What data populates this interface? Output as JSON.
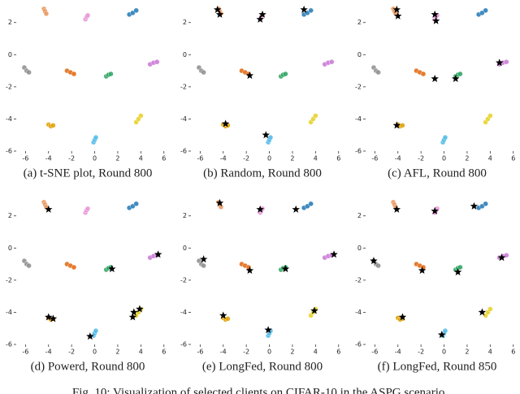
{
  "chart_data": [
    {
      "type": "scatter",
      "caption": "(a) t-SNE plot, Round 800",
      "xlim": [
        -6.8,
        6.3
      ],
      "ylim": [
        -6,
        3.2
      ],
      "xticks": [
        -6,
        -4,
        -2,
        0,
        2,
        4,
        6
      ],
      "yticks": [
        -6,
        -4,
        -2,
        0,
        2
      ],
      "series": [
        {
          "color": "#e8955c",
          "x": [
            -4.4,
            -4.3,
            -4.2
          ],
          "values": [
            2.85,
            2.7,
            2.55
          ]
        },
        {
          "color": "#e895d8",
          "x": [
            -0.8,
            -0.7,
            -0.6
          ],
          "values": [
            2.2,
            2.35,
            2.45
          ]
        },
        {
          "color": "#1f77b4",
          "x": [
            3.0,
            3.3,
            3.6
          ],
          "values": [
            2.5,
            2.6,
            2.75
          ]
        },
        {
          "color": "#8c8c8c",
          "x": [
            -6.1,
            -5.9,
            -5.7
          ],
          "values": [
            -0.8,
            -1.0,
            -1.1
          ]
        },
        {
          "color": "#e0650a",
          "x": [
            -2.4,
            -2.1,
            -1.8
          ],
          "values": [
            -1.0,
            -1.1,
            -1.2
          ]
        },
        {
          "color": "#2ca25f",
          "x": [
            1.0,
            1.2,
            1.4
          ],
          "values": [
            -1.35,
            -1.25,
            -1.2
          ]
        },
        {
          "color": "#c875d4",
          "x": [
            4.8,
            5.1,
            5.4
          ],
          "values": [
            -0.6,
            -0.5,
            -0.45
          ]
        },
        {
          "color": "#e0a000",
          "x": [
            -4.0,
            -3.8,
            -3.6
          ],
          "values": [
            -4.35,
            -4.45,
            -4.4
          ]
        },
        {
          "color": "#e6d020",
          "x": [
            3.6,
            3.8,
            4.0
          ],
          "values": [
            -4.2,
            -4.0,
            -3.8
          ]
        },
        {
          "color": "#4cb8e6",
          "x": [
            -0.1,
            0,
            0.1
          ],
          "values": [
            -5.45,
            -5.3,
            -5.15
          ]
        }
      ]
    },
    {
      "type": "scatter",
      "caption": "(b) Random, Round 800",
      "xlim": [
        -6.8,
        6.3
      ],
      "ylim": [
        -6,
        3.2
      ],
      "xticks": [
        -6,
        -4,
        -2,
        0,
        2,
        4,
        6
      ],
      "yticks": [
        -6,
        -4,
        -2,
        0,
        2
      ],
      "series": [
        {
          "color": "#e8955c",
          "x": [
            -4.4,
            -4.3,
            -4.2
          ],
          "values": [
            2.85,
            2.7,
            2.55
          ]
        },
        {
          "color": "#e895d8",
          "x": [
            -0.8,
            -0.7,
            -0.6
          ],
          "values": [
            2.2,
            2.35,
            2.45
          ]
        },
        {
          "color": "#1f77b4",
          "x": [
            3.0,
            3.3,
            3.6
          ],
          "values": [
            2.5,
            2.6,
            2.75
          ]
        },
        {
          "color": "#8c8c8c",
          "x": [
            -6.1,
            -5.9,
            -5.7
          ],
          "values": [
            -0.8,
            -1.0,
            -1.1
          ]
        },
        {
          "color": "#e0650a",
          "x": [
            -2.4,
            -2.1,
            -1.8
          ],
          "values": [
            -1.0,
            -1.1,
            -1.2
          ]
        },
        {
          "color": "#2ca25f",
          "x": [
            1.0,
            1.2,
            1.4
          ],
          "values": [
            -1.35,
            -1.25,
            -1.2
          ]
        },
        {
          "color": "#c875d4",
          "x": [
            4.8,
            5.1,
            5.4
          ],
          "values": [
            -0.6,
            -0.5,
            -0.45
          ]
        },
        {
          "color": "#e0a000",
          "x": [
            -4.0,
            -3.8,
            -3.6
          ],
          "values": [
            -4.35,
            -4.45,
            -4.4
          ]
        },
        {
          "color": "#e6d020",
          "x": [
            3.6,
            3.8,
            4.0
          ],
          "values": [
            -4.2,
            -4.0,
            -3.8
          ]
        },
        {
          "color": "#4cb8e6",
          "x": [
            -0.1,
            0,
            0.1
          ],
          "values": [
            -5.45,
            -5.3,
            -5.15
          ]
        },
        {
          "color": "#000000",
          "marker": "star",
          "x": [
            -4.5,
            -4.3,
            -0.6,
            -0.8,
            3.0,
            -1.7,
            -3.8,
            -0.3
          ],
          "values": [
            2.8,
            2.5,
            2.5,
            2.2,
            2.8,
            -1.3,
            -4.3,
            -5.0
          ]
        }
      ]
    },
    {
      "type": "scatter",
      "caption": "(c) AFL, Round 800",
      "xlim": [
        -6.8,
        6.3
      ],
      "ylim": [
        -6,
        3.2
      ],
      "xticks": [
        -6,
        -4,
        -2,
        0,
        2,
        4,
        6
      ],
      "yticks": [
        -6,
        -4,
        -2,
        0,
        2
      ],
      "series": [
        {
          "color": "#e8955c",
          "x": [
            -4.4,
            -4.3,
            -4.2
          ],
          "values": [
            2.85,
            2.7,
            2.55
          ]
        },
        {
          "color": "#e895d8",
          "x": [
            -0.8,
            -0.7,
            -0.6
          ],
          "values": [
            2.2,
            2.35,
            2.45
          ]
        },
        {
          "color": "#1f77b4",
          "x": [
            3.0,
            3.3,
            3.6
          ],
          "values": [
            2.5,
            2.6,
            2.75
          ]
        },
        {
          "color": "#8c8c8c",
          "x": [
            -6.1,
            -5.9,
            -5.7
          ],
          "values": [
            -0.8,
            -1.0,
            -1.1
          ]
        },
        {
          "color": "#e0650a",
          "x": [
            -2.4,
            -2.1,
            -1.8
          ],
          "values": [
            -1.0,
            -1.1,
            -1.2
          ]
        },
        {
          "color": "#2ca25f",
          "x": [
            1.0,
            1.2,
            1.4
          ],
          "values": [
            -1.35,
            -1.25,
            -1.2
          ]
        },
        {
          "color": "#c875d4",
          "x": [
            4.8,
            5.1,
            5.4
          ],
          "values": [
            -0.6,
            -0.5,
            -0.45
          ]
        },
        {
          "color": "#e0a000",
          "x": [
            -4.0,
            -3.8,
            -3.6
          ],
          "values": [
            -4.35,
            -4.45,
            -4.4
          ]
        },
        {
          "color": "#e6d020",
          "x": [
            3.6,
            3.8,
            4.0
          ],
          "values": [
            -4.2,
            -4.0,
            -3.8
          ]
        },
        {
          "color": "#4cb8e6",
          "x": [
            -0.1,
            0,
            0.1
          ],
          "values": [
            -5.45,
            -5.3,
            -5.15
          ]
        },
        {
          "color": "#000000",
          "marker": "star",
          "x": [
            -4.1,
            -4.0,
            -0.8,
            -0.7,
            -0.8,
            1.0,
            4.8,
            -4.1
          ],
          "values": [
            2.8,
            2.4,
            2.5,
            2.1,
            -1.5,
            -1.5,
            -0.5,
            -4.4
          ]
        }
      ]
    },
    {
      "type": "scatter",
      "caption": "(d) Powerd, Round 800",
      "xlim": [
        -6.8,
        6.3
      ],
      "ylim": [
        -6,
        3.2
      ],
      "xticks": [
        -6,
        -4,
        -2,
        0,
        2,
        4,
        6
      ],
      "yticks": [
        -6,
        -4,
        -2,
        0,
        2
      ],
      "series": [
        {
          "color": "#e8955c",
          "x": [
            -4.4,
            -4.3,
            -4.2
          ],
          "values": [
            2.85,
            2.7,
            2.55
          ]
        },
        {
          "color": "#e895d8",
          "x": [
            -0.8,
            -0.7,
            -0.6
          ],
          "values": [
            2.2,
            2.35,
            2.45
          ]
        },
        {
          "color": "#1f77b4",
          "x": [
            3.0,
            3.3,
            3.6
          ],
          "values": [
            2.5,
            2.6,
            2.75
          ]
        },
        {
          "color": "#8c8c8c",
          "x": [
            -6.1,
            -5.9,
            -5.7
          ],
          "values": [
            -0.8,
            -1.0,
            -1.1
          ]
        },
        {
          "color": "#e0650a",
          "x": [
            -2.4,
            -2.1,
            -1.8
          ],
          "values": [
            -1.0,
            -1.1,
            -1.2
          ]
        },
        {
          "color": "#2ca25f",
          "x": [
            1.0,
            1.2,
            1.4
          ],
          "values": [
            -1.35,
            -1.25,
            -1.2
          ]
        },
        {
          "color": "#c875d4",
          "x": [
            4.8,
            5.1,
            5.4
          ],
          "values": [
            -0.6,
            -0.5,
            -0.45
          ]
        },
        {
          "color": "#e0a000",
          "x": [
            -4.0,
            -3.8,
            -3.6
          ],
          "values": [
            -4.35,
            -4.45,
            -4.4
          ]
        },
        {
          "color": "#e6d020",
          "x": [
            3.6,
            3.8,
            4.0
          ],
          "values": [
            -4.2,
            -4.0,
            -3.8
          ]
        },
        {
          "color": "#4cb8e6",
          "x": [
            -0.1,
            0,
            0.1
          ],
          "values": [
            -5.45,
            -5.3,
            -5.15
          ]
        },
        {
          "color": "#000000",
          "marker": "star",
          "x": [
            -4.0,
            1.5,
            5.5,
            -4.0,
            -3.6,
            -0.4,
            3.3,
            3.9,
            3.4
          ],
          "values": [
            2.4,
            -1.3,
            -0.4,
            -4.3,
            -4.4,
            -5.5,
            -4.3,
            -3.8,
            -4.0
          ]
        }
      ]
    },
    {
      "type": "scatter",
      "caption": "(e) LongFed, Round 800",
      "xlim": [
        -6.8,
        6.3
      ],
      "ylim": [
        -6,
        3.2
      ],
      "xticks": [
        -6,
        -4,
        -2,
        0,
        2,
        4,
        6
      ],
      "yticks": [
        -6,
        -4,
        -2,
        0,
        2
      ],
      "series": [
        {
          "color": "#e8955c",
          "x": [
            -4.4,
            -4.3,
            -4.2
          ],
          "values": [
            2.85,
            2.7,
            2.55
          ]
        },
        {
          "color": "#e895d8",
          "x": [
            -0.8,
            -0.7,
            -0.6
          ],
          "values": [
            2.2,
            2.35,
            2.45
          ]
        },
        {
          "color": "#1f77b4",
          "x": [
            3.0,
            3.3,
            3.6
          ],
          "values": [
            2.5,
            2.6,
            2.75
          ]
        },
        {
          "color": "#8c8c8c",
          "x": [
            -6.1,
            -5.9,
            -5.7
          ],
          "values": [
            -0.8,
            -1.0,
            -1.1
          ]
        },
        {
          "color": "#e0650a",
          "x": [
            -2.4,
            -2.1,
            -1.8
          ],
          "values": [
            -1.0,
            -1.1,
            -1.2
          ]
        },
        {
          "color": "#2ca25f",
          "x": [
            1.0,
            1.2,
            1.4
          ],
          "values": [
            -1.35,
            -1.25,
            -1.2
          ]
        },
        {
          "color": "#c875d4",
          "x": [
            4.8,
            5.1,
            5.4
          ],
          "values": [
            -0.6,
            -0.5,
            -0.45
          ]
        },
        {
          "color": "#e0a000",
          "x": [
            -4.0,
            -3.8,
            -3.6
          ],
          "values": [
            -4.35,
            -4.45,
            -4.4
          ]
        },
        {
          "color": "#e6d020",
          "x": [
            3.6,
            3.8,
            4.0
          ],
          "values": [
            -4.2,
            -4.0,
            -3.8
          ]
        },
        {
          "color": "#4cb8e6",
          "x": [
            -0.1,
            0,
            0.1
          ],
          "values": [
            -5.45,
            -5.3,
            -5.15
          ]
        },
        {
          "color": "#000000",
          "marker": "star",
          "x": [
            -4.3,
            -0.8,
            2.3,
            -5.7,
            -1.7,
            1.4,
            5.6,
            -4.0,
            -0.1,
            3.9
          ],
          "values": [
            2.8,
            2.4,
            2.4,
            -0.7,
            -1.4,
            -1.3,
            -0.4,
            -4.2,
            -5.1,
            -3.9
          ]
        }
      ]
    },
    {
      "type": "scatter",
      "caption": "(f) LongFed, Round 850",
      "xlim": [
        -6.8,
        6.3
      ],
      "ylim": [
        -6,
        3.2
      ],
      "xticks": [
        -6,
        -4,
        -2,
        0,
        2,
        4,
        6
      ],
      "yticks": [
        -6,
        -4,
        -2,
        0,
        2
      ],
      "series": [
        {
          "color": "#e8955c",
          "x": [
            -4.4,
            -4.3,
            -4.2
          ],
          "values": [
            2.85,
            2.7,
            2.55
          ]
        },
        {
          "color": "#e895d8",
          "x": [
            -0.8,
            -0.7,
            -0.6
          ],
          "values": [
            2.2,
            2.35,
            2.45
          ]
        },
        {
          "color": "#1f77b4",
          "x": [
            3.0,
            3.3,
            3.6
          ],
          "values": [
            2.5,
            2.6,
            2.75
          ]
        },
        {
          "color": "#8c8c8c",
          "x": [
            -6.1,
            -5.9,
            -5.7
          ],
          "values": [
            -0.8,
            -1.0,
            -1.1
          ]
        },
        {
          "color": "#e0650a",
          "x": [
            -2.4,
            -2.1,
            -1.8
          ],
          "values": [
            -1.0,
            -1.1,
            -1.2
          ]
        },
        {
          "color": "#2ca25f",
          "x": [
            1.0,
            1.2,
            1.4
          ],
          "values": [
            -1.35,
            -1.25,
            -1.2
          ]
        },
        {
          "color": "#c875d4",
          "x": [
            4.8,
            5.1,
            5.4
          ],
          "values": [
            -0.6,
            -0.5,
            -0.45
          ]
        },
        {
          "color": "#e0a000",
          "x": [
            -4.0,
            -3.8,
            -3.6
          ],
          "values": [
            -4.35,
            -4.45,
            -4.4
          ]
        },
        {
          "color": "#e6d020",
          "x": [
            3.6,
            3.8,
            4.0
          ],
          "values": [
            -4.2,
            -4.0,
            -3.8
          ]
        },
        {
          "color": "#4cb8e6",
          "x": [
            -0.1,
            0,
            0.1
          ],
          "values": [
            -5.45,
            -5.3,
            -5.15
          ]
        },
        {
          "color": "#000000",
          "marker": "star",
          "x": [
            -4.1,
            -0.8,
            2.6,
            -6.1,
            -1.9,
            1.2,
            5.0,
            -3.6,
            -0.2,
            3.3
          ],
          "values": [
            2.4,
            2.3,
            2.6,
            -0.8,
            -1.4,
            -1.5,
            -0.6,
            -4.3,
            -5.4,
            -4.0
          ]
        }
      ]
    }
  ],
  "caption": "Fig. 10: Visualization of selected clients on CIFAR-10 in the ASPG scenario."
}
